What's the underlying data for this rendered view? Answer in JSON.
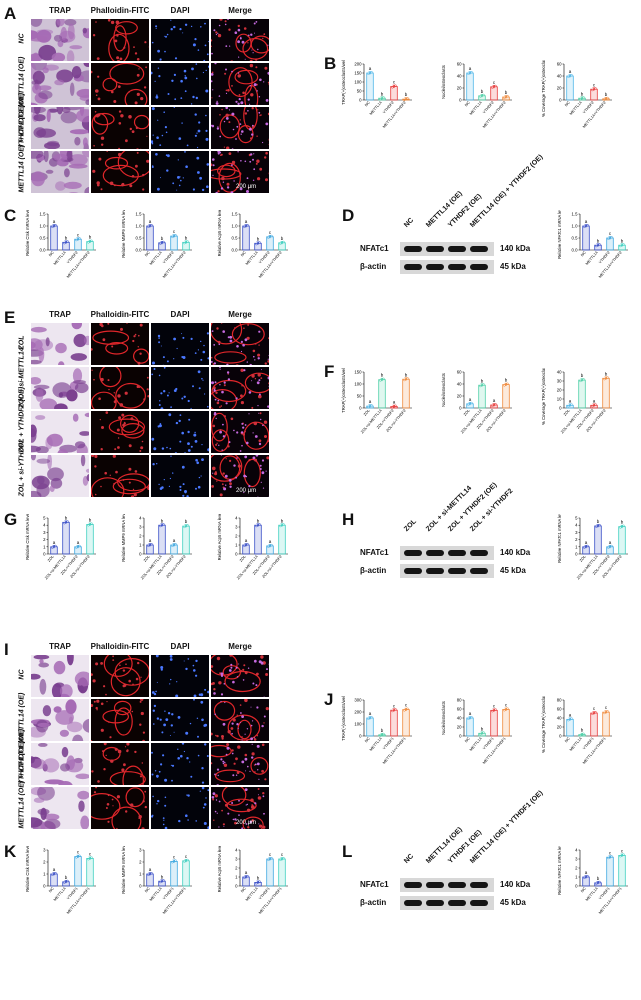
{
  "figure": {
    "sections": [
      {
        "micro_letter": "A",
        "micro_top": 4,
        "columns": [
          "TRAP",
          "Phalloidin-FITC",
          "DAPI",
          "Merge"
        ],
        "rows": [
          "NC",
          "METTL14 (OE)",
          "YTHDF2 (OE)",
          "METTL14 (OE) + YTHDF2 (OE)"
        ],
        "scale": "200 μm",
        "trap_style": "dark",
        "quant_letter": "B",
        "quant_top": 54,
        "qpcr_letter": "C",
        "qpcr_top": 180,
        "blot_letter": "D",
        "blot_top": 218,
        "blot_headers": [
          "NC",
          "METTL14 (OE)",
          "YTHDF2 (OE)",
          "METTL14 (OE) + YTHDF2 (OE)"
        ]
      },
      {
        "micro_letter": "E",
        "micro_top": 308,
        "columns": [
          "TRAP",
          "Phalloidin-FITC",
          "DAPI",
          "Merge"
        ],
        "rows": [
          "ZOL",
          "ZOL + si-METTL14",
          "ZOL + YTHDF2 (OE)",
          "ZOL + si-YTHDF2"
        ],
        "scale": "200 μm",
        "trap_style": "light",
        "quant_letter": "F",
        "quant_top": 362,
        "qpcr_letter": "G",
        "qpcr_top": 540,
        "blot_letter": "H",
        "blot_top": 548,
        "blot_headers": [
          "ZOL",
          "ZOL + si-METTL14",
          "ZOL + YTHDF2 (OE)",
          "ZOL + si-YTHDF2"
        ]
      },
      {
        "micro_letter": "I",
        "micro_top": 640,
        "columns": [
          "TRAP",
          "Phalloidin-FITC",
          "DAPI",
          "Merge"
        ],
        "rows": [
          "NC",
          "METTL14 (OE)",
          "YTHDF1 (OE)",
          "METTL14 (OE) + YTHDF1 (OE)"
        ],
        "scale": "200 μm",
        "trap_style": "light",
        "quant_letter": "J",
        "quant_top": 690,
        "qpcr_letter": "K",
        "qpcr_top": 878,
        "blot_letter": "L",
        "blot_top": 878,
        "blot_headers": [
          "NC",
          "METTL14 (OE)",
          "YTHDF1 (OE)",
          "METTL14 (OE) + YTHDF1 (OE)"
        ]
      }
    ],
    "blots": {
      "nfatc1_label": "NFATc1",
      "actin_label": "β-actin",
      "nfatc1_kda": "140 kDa",
      "actin_kda": "45 kDa"
    }
  },
  "chart_data": [
    {
      "panel": "B",
      "type": "bar",
      "ylabel": "TRAP(+)osteoclasts/well",
      "ylim": [
        0,
        200
      ],
      "ticks": [
        0,
        50,
        100,
        150,
        200
      ],
      "categories": [
        "NC",
        "METTL14",
        "YTHDF2",
        "METTL14+YTHDF2"
      ],
      "values": [
        150,
        10,
        75,
        5
      ],
      "letters": [
        "a",
        "b",
        "c",
        "b"
      ],
      "colors": [
        "#4fb6e8",
        "#4fd0a8",
        "#e83c3c",
        "#f08a3c"
      ]
    },
    {
      "panel": "B",
      "type": "bar",
      "ylabel": "Nuclei/osteoclasts",
      "ylim": [
        0,
        60
      ],
      "ticks": [
        0,
        20,
        40,
        60
      ],
      "categories": [
        "NC",
        "METTL14",
        "YTHDF2",
        "METTL14+YTHDF2"
      ],
      "values": [
        45,
        7,
        22,
        5
      ],
      "letters": [
        "a",
        "b",
        "c",
        "b"
      ],
      "colors": [
        "#4fb6e8",
        "#4fd0a8",
        "#e83c3c",
        "#f08a3c"
      ]
    },
    {
      "panel": "B",
      "type": "bar",
      "ylabel": "% Coverage TRAP(+)osteoclasts/well",
      "ylim": [
        0,
        60
      ],
      "ticks": [
        0,
        20,
        40,
        60
      ],
      "categories": [
        "NC",
        "METTL14",
        "YTHDF2",
        "METTL14+YTHDF2"
      ],
      "values": [
        40,
        3,
        18,
        2
      ],
      "letters": [
        "a",
        "b",
        "c",
        "b"
      ],
      "colors": [
        "#4fb6e8",
        "#4fd0a8",
        "#e83c3c",
        "#f08a3c"
      ]
    },
    {
      "panel": "C",
      "type": "bar",
      "ylabel": "Relative Ctsk mRNA level",
      "ylim": [
        0,
        1.5
      ],
      "ticks": [
        0.0,
        0.5,
        1.0,
        1.5
      ],
      "categories": [
        "NC",
        "METTL14",
        "YTHDF2",
        "METTL14+YTHDF2"
      ],
      "values": [
        1.0,
        0.32,
        0.45,
        0.35
      ],
      "letters": [
        "a",
        "b",
        "c",
        "b"
      ],
      "colors": [
        "#3a4fc8",
        "#3a4fc8",
        "#3fa8e0",
        "#3fd0c0"
      ]
    },
    {
      "panel": "C",
      "type": "bar",
      "ylabel": "Relative MMP9 mRNA level",
      "ylim": [
        0,
        1.5
      ],
      "ticks": [
        0.0,
        0.5,
        1.0,
        1.5
      ],
      "categories": [
        "NC",
        "METTL14",
        "YTHDF2",
        "METTL14+YTHDF2"
      ],
      "values": [
        1.0,
        0.3,
        0.58,
        0.32
      ],
      "letters": [
        "a",
        "b",
        "c",
        "b"
      ],
      "colors": [
        "#3a4fc8",
        "#3a4fc8",
        "#3fa8e0",
        "#3fd0c0"
      ]
    },
    {
      "panel": "C",
      "type": "bar",
      "ylabel": "Relative Acp5 mRNA level",
      "ylim": [
        0,
        1.5
      ],
      "ticks": [
        0.0,
        0.5,
        1.0,
        1.5
      ],
      "categories": [
        "NC",
        "METTL14",
        "YTHDF2",
        "METTL14+YTHDF2"
      ],
      "values": [
        1.0,
        0.28,
        0.55,
        0.3
      ],
      "letters": [
        "a",
        "b",
        "c",
        "b"
      ],
      "colors": [
        "#3a4fc8",
        "#3a4fc8",
        "#3fa8e0",
        "#3fd0c0"
      ]
    },
    {
      "panel": "D",
      "type": "bar",
      "ylabel": "Relative NFATc1 mRNA level",
      "ylim": [
        0,
        1.5
      ],
      "ticks": [
        0.0,
        0.5,
        1.0,
        1.5
      ],
      "categories": [
        "NC",
        "METTL14",
        "YTHDF2",
        "METTL14+YTHDF2"
      ],
      "values": [
        1.0,
        0.2,
        0.5,
        0.2
      ],
      "letters": [
        "a",
        "b",
        "c",
        "b"
      ],
      "colors": [
        "#3a4fc8",
        "#3a4fc8",
        "#3fa8e0",
        "#3fd0c0"
      ]
    },
    {
      "panel": "F",
      "type": "bar",
      "ylabel": "TRAP(+)osteoclasts/well",
      "ylim": [
        0,
        150
      ],
      "ticks": [
        0,
        50,
        100,
        150
      ],
      "categories": [
        "ZOL",
        "ZOL+si-METTL14",
        "ZOL+YTHDF2",
        "ZOL+si-YTHDF2"
      ],
      "values": [
        8,
        118,
        6,
        120
      ],
      "letters": [
        "a",
        "b",
        "a",
        "b"
      ],
      "colors": [
        "#4fb6e8",
        "#4fd0a8",
        "#e83c3c",
        "#f08a3c"
      ]
    },
    {
      "panel": "F",
      "type": "bar",
      "ylabel": "Nuclei/osteoclasts",
      "ylim": [
        0,
        60
      ],
      "ticks": [
        0,
        20,
        40,
        60
      ],
      "categories": [
        "ZOL",
        "ZOL+si-METTL14",
        "ZOL+YTHDF2",
        "ZOL+si-YTHDF2"
      ],
      "values": [
        7,
        38,
        5,
        39
      ],
      "letters": [
        "a",
        "b",
        "a",
        "b"
      ],
      "colors": [
        "#4fb6e8",
        "#4fd0a8",
        "#e83c3c",
        "#f08a3c"
      ]
    },
    {
      "panel": "F",
      "type": "bar",
      "ylabel": "% Coverage TRAP(+)osteoclasts/well",
      "ylim": [
        0,
        40
      ],
      "ticks": [
        0,
        10,
        20,
        30,
        40
      ],
      "categories": [
        "ZOL",
        "ZOL+si-METTL14",
        "ZOL+YTHDF2",
        "ZOL+si-YTHDF2"
      ],
      "values": [
        3,
        31,
        3,
        33
      ],
      "letters": [
        "a",
        "b",
        "a",
        "b"
      ],
      "colors": [
        "#4fb6e8",
        "#4fd0a8",
        "#e83c3c",
        "#f08a3c"
      ]
    },
    {
      "panel": "G",
      "type": "bar",
      "ylabel": "Relative Ctsk mRNA level",
      "ylim": [
        0,
        5
      ],
      "ticks": [
        0,
        1,
        2,
        3,
        4,
        5
      ],
      "categories": [
        "ZOL",
        "ZOL+si-METTL14",
        "ZOL+YTHDF2",
        "ZOL+si-YTHDF2"
      ],
      "values": [
        1.0,
        4.4,
        1.0,
        4.1
      ],
      "letters": [
        "a",
        "b",
        "a",
        "b"
      ],
      "colors": [
        "#3a4fc8",
        "#3a4fc8",
        "#3fa8e0",
        "#3fd0c0"
      ]
    },
    {
      "panel": "G",
      "type": "bar",
      "ylabel": "Relative MMP9 mRNA level",
      "ylim": [
        0,
        4
      ],
      "ticks": [
        0,
        1,
        2,
        3,
        4
      ],
      "categories": [
        "ZOL",
        "ZOL+si-METTL14",
        "ZOL+YTHDF2",
        "ZOL+si-YTHDF2"
      ],
      "values": [
        1.0,
        3.2,
        1.0,
        3.1
      ],
      "letters": [
        "a",
        "b",
        "a",
        "b"
      ],
      "colors": [
        "#3a4fc8",
        "#3a4fc8",
        "#3fa8e0",
        "#3fd0c0"
      ]
    },
    {
      "panel": "G",
      "type": "bar",
      "ylabel": "Relative Acp5 mRNA level",
      "ylim": [
        0,
        4
      ],
      "ticks": [
        0,
        1,
        2,
        3,
        4
      ],
      "categories": [
        "ZOL",
        "ZOL+si-METTL14",
        "ZOL+YTHDF2",
        "ZOL+si-YTHDF2"
      ],
      "values": [
        1.0,
        3.2,
        0.9,
        3.2
      ],
      "letters": [
        "a",
        "b",
        "a",
        "b"
      ],
      "colors": [
        "#3a4fc8",
        "#3a4fc8",
        "#3fa8e0",
        "#3fd0c0"
      ]
    },
    {
      "panel": "H",
      "type": "bar",
      "ylabel": "Relative NFATc1 mRNA level",
      "ylim": [
        0,
        5
      ],
      "ticks": [
        0,
        1,
        2,
        3,
        4,
        5
      ],
      "categories": [
        "ZOL",
        "ZOL+si-METTL14",
        "ZOL+YTHDF2",
        "ZOL+si-YTHDF2"
      ],
      "values": [
        1.0,
        3.9,
        1.0,
        3.8
      ],
      "letters": [
        "a",
        "b",
        "a",
        "b"
      ],
      "colors": [
        "#3a4fc8",
        "#3a4fc8",
        "#3fa8e0",
        "#3fd0c0"
      ]
    },
    {
      "panel": "J",
      "type": "bar",
      "ylabel": "TRAP(+)osteoclasts/well",
      "ylim": [
        0,
        300
      ],
      "ticks": [
        0,
        100,
        200,
        300
      ],
      "categories": [
        "NC",
        "METTL14",
        "YTHDF1",
        "METTL14+YTHDF1"
      ],
      "values": [
        150,
        10,
        215,
        220
      ],
      "letters": [
        "a",
        "b",
        "c",
        "c"
      ],
      "colors": [
        "#4fb6e8",
        "#4fd0a8",
        "#e83c3c",
        "#f08a3c"
      ]
    },
    {
      "panel": "J",
      "type": "bar",
      "ylabel": "Nuclei/osteoclasts",
      "ylim": [
        0,
        80
      ],
      "ticks": [
        0,
        20,
        40,
        60,
        80
      ],
      "categories": [
        "NC",
        "METTL14",
        "YTHDF1",
        "METTL14+YTHDF1"
      ],
      "values": [
        40,
        6,
        57,
        59
      ],
      "letters": [
        "a",
        "b",
        "c",
        "c"
      ],
      "colors": [
        "#4fb6e8",
        "#4fd0a8",
        "#e83c3c",
        "#f08a3c"
      ]
    },
    {
      "panel": "J",
      "type": "bar",
      "ylabel": "% Coverage TRAP(+)osteoclasts/well",
      "ylim": [
        0,
        80
      ],
      "ticks": [
        0,
        20,
        40,
        60,
        80
      ],
      "categories": [
        "NC",
        "METTL14",
        "YTHDF1",
        "METTL14+YTHDF1"
      ],
      "values": [
        37,
        3,
        51,
        53
      ],
      "letters": [
        "a",
        "b",
        "c",
        "c"
      ],
      "colors": [
        "#4fb6e8",
        "#4fd0a8",
        "#e83c3c",
        "#f08a3c"
      ]
    },
    {
      "panel": "K",
      "type": "bar",
      "ylabel": "Relative Ctsk mRNA level",
      "ylim": [
        0,
        3
      ],
      "ticks": [
        0,
        1,
        2,
        3
      ],
      "categories": [
        "NC",
        "METTL14",
        "YTHDF1",
        "METTL14+YTHDF1"
      ],
      "values": [
        1.0,
        0.35,
        2.45,
        2.3
      ],
      "letters": [
        "a",
        "b",
        "c",
        "c"
      ],
      "colors": [
        "#3a4fc8",
        "#3a4fc8",
        "#3fa8e0",
        "#3fd0c0"
      ]
    },
    {
      "panel": "K",
      "type": "bar",
      "ylabel": "Relative MMP9 mRNA level",
      "ylim": [
        0,
        3
      ],
      "ticks": [
        0,
        1,
        2,
        3
      ],
      "categories": [
        "NC",
        "METTL14",
        "YTHDF1",
        "METTL14+YTHDF1"
      ],
      "values": [
        1.0,
        0.4,
        2.05,
        2.1
      ],
      "letters": [
        "a",
        "b",
        "c",
        "c"
      ],
      "colors": [
        "#3a4fc8",
        "#3a4fc8",
        "#3fa8e0",
        "#3fd0c0"
      ]
    },
    {
      "panel": "K",
      "type": "bar",
      "ylabel": "Relative Acp5 mRNA level",
      "ylim": [
        0,
        4
      ],
      "ticks": [
        0,
        1,
        2,
        3,
        4
      ],
      "categories": [
        "NC",
        "METTL14",
        "YTHDF1",
        "METTL14+YTHDF1"
      ],
      "values": [
        1.0,
        0.4,
        3.0,
        3.0
      ],
      "letters": [
        "a",
        "b",
        "c",
        "c"
      ],
      "colors": [
        "#3a4fc8",
        "#3a4fc8",
        "#3fa8e0",
        "#3fd0c0"
      ]
    },
    {
      "panel": "L",
      "type": "bar",
      "ylabel": "Relative NFATc1 mRNA level",
      "ylim": [
        0,
        4
      ],
      "ticks": [
        0,
        1,
        2,
        3,
        4
      ],
      "categories": [
        "NC",
        "METTL14",
        "YTHDF1",
        "METTL14+YTHDF1"
      ],
      "values": [
        1.0,
        0.35,
        3.2,
        3.4
      ],
      "letters": [
        "a",
        "b",
        "c",
        "c"
      ],
      "colors": [
        "#3a4fc8",
        "#3a4fc8",
        "#3fa8e0",
        "#3fd0c0"
      ]
    }
  ]
}
